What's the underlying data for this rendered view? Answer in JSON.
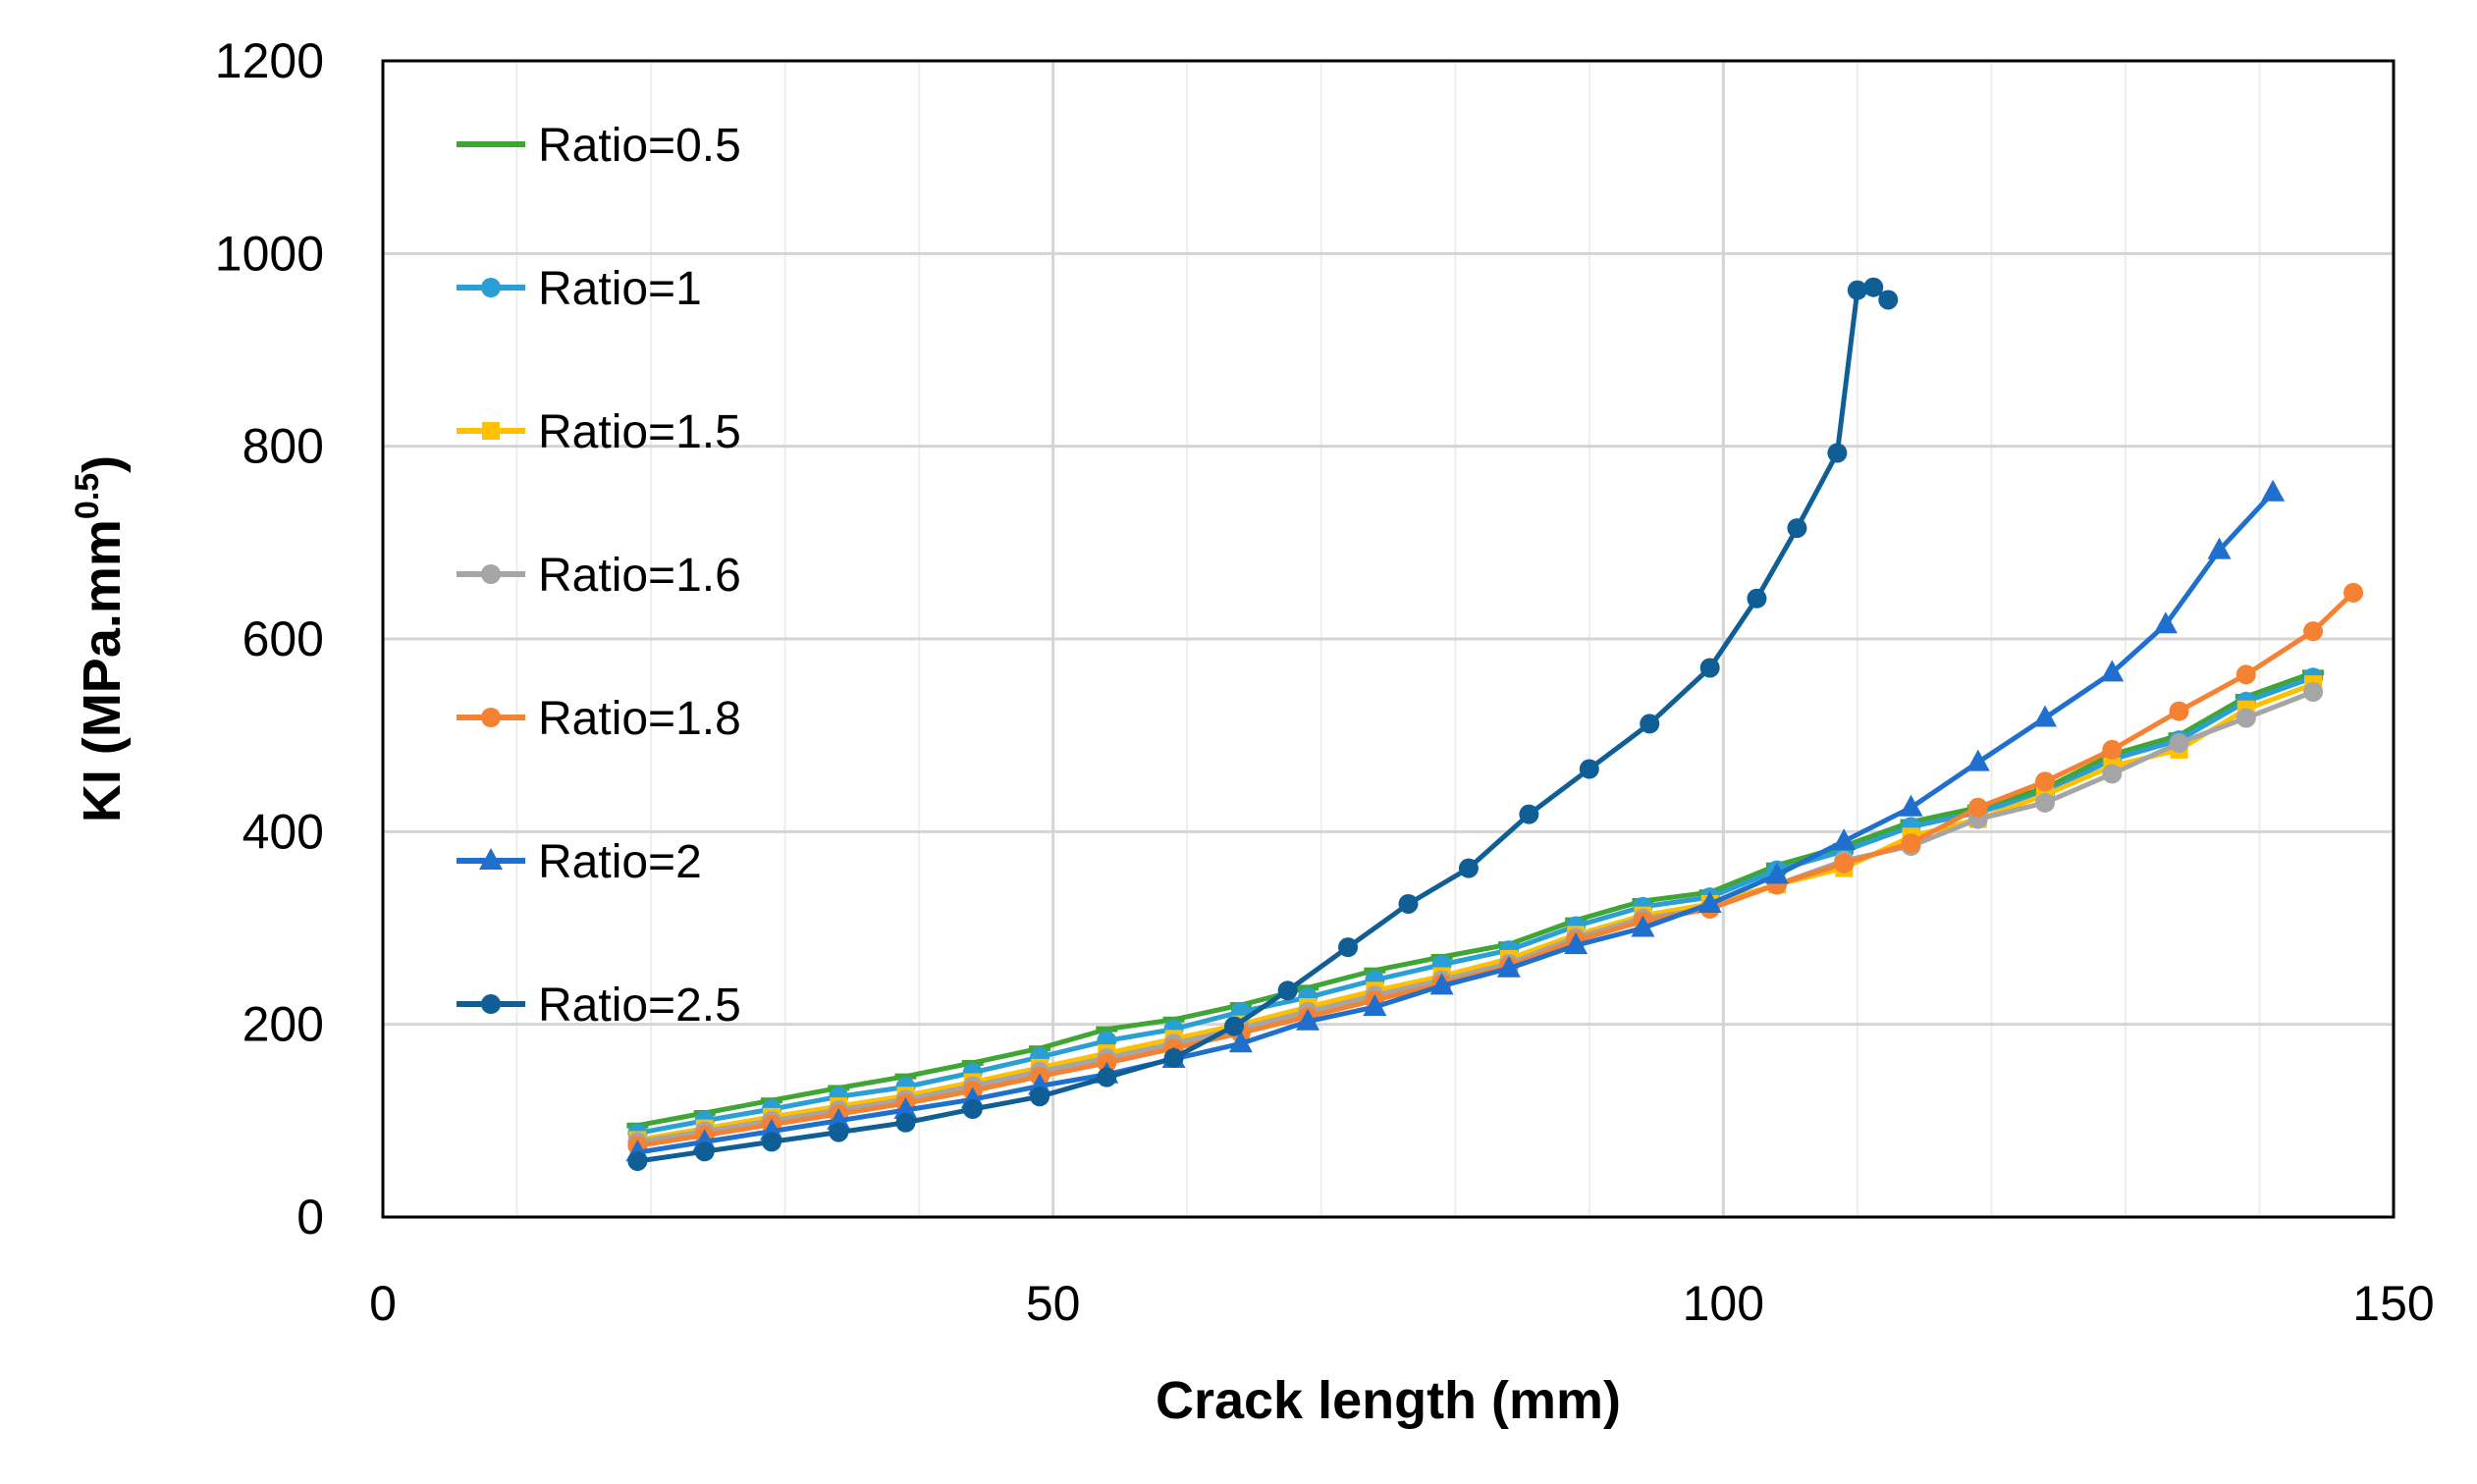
{
  "chart_data": {
    "type": "line",
    "title": "",
    "xlabel": "Crack length (mm)",
    "ylabel_main": "KI (MPa.mm",
    "ylabel_sup": "0.5",
    "ylabel_close": ")",
    "xlim": [
      0,
      150
    ],
    "ylim": [
      0,
      1200
    ],
    "xticks": [
      0,
      50,
      100,
      150
    ],
    "xtick_labels": [
      "0",
      "50",
      "100",
      "150"
    ],
    "yticks": [
      0,
      200,
      400,
      600,
      800,
      1000,
      1200
    ],
    "ytick_labels": [
      "0",
      "200",
      "400",
      "600",
      "800",
      "1000",
      "1200"
    ],
    "grid": true,
    "legend_position": "top-left",
    "series": [
      {
        "name": "Ratio=0.5",
        "color": "#3FA535",
        "marker": "dash",
        "x": [
          19,
          24,
          29,
          34,
          39,
          44,
          49,
          54,
          59,
          64,
          69,
          74,
          79,
          84,
          89,
          94,
          99,
          104,
          109,
          114,
          119,
          124,
          129,
          134,
          139,
          144
        ],
        "y": [
          95,
          108,
          121,
          134,
          146,
          160,
          175,
          195,
          205,
          220,
          238,
          256,
          270,
          283,
          308,
          328,
          337,
          365,
          385,
          410,
          425,
          445,
          480,
          500,
          540,
          565
        ]
      },
      {
        "name": "Ratio=1",
        "color": "#2A9FD6",
        "marker": "circle",
        "x": [
          19,
          24,
          29,
          34,
          39,
          44,
          49,
          54,
          59,
          64,
          69,
          74,
          79,
          84,
          89,
          94,
          99,
          104,
          109,
          114,
          119,
          124,
          129,
          134,
          139,
          144
        ],
        "y": [
          87,
          100,
          112,
          125,
          135,
          150,
          166,
          183,
          195,
          213,
          228,
          246,
          262,
          277,
          302,
          322,
          332,
          360,
          380,
          405,
          420,
          440,
          475,
          495,
          535,
          560
        ]
      },
      {
        "name": "Ratio=1.5",
        "color": "#FFC000",
        "marker": "square",
        "x": [
          19,
          24,
          29,
          34,
          39,
          44,
          49,
          54,
          59,
          64,
          69,
          74,
          79,
          84,
          89,
          94,
          99,
          104,
          109,
          114,
          119,
          124,
          129,
          134,
          139,
          144
        ],
        "y": [
          80,
          92,
          104,
          115,
          126,
          140,
          155,
          170,
          185,
          200,
          218,
          235,
          250,
          268,
          293,
          313,
          325,
          345,
          362,
          395,
          413,
          438,
          468,
          485,
          527,
          553
        ]
      },
      {
        "name": "Ratio=1.6",
        "color": "#A5A5A5",
        "marker": "circle",
        "x": [
          19,
          24,
          29,
          34,
          39,
          44,
          49,
          54,
          59,
          64,
          69,
          74,
          79,
          84,
          89,
          94,
          99,
          104,
          109,
          114,
          119,
          124,
          129,
          134,
          139,
          144
        ],
        "y": [
          78,
          89,
          100,
          111,
          122,
          136,
          151,
          165,
          180,
          196,
          213,
          230,
          246,
          263,
          290,
          310,
          320,
          345,
          370,
          385,
          413,
          430,
          460,
          492,
          518,
          545
        ]
      },
      {
        "name": "Ratio=1.8",
        "color": "#F58233",
        "marker": "circle",
        "x": [
          19,
          24,
          29,
          34,
          39,
          44,
          49,
          54,
          59,
          64,
          69,
          74,
          79,
          84,
          89,
          94,
          99,
          104,
          109,
          114,
          119,
          124,
          129,
          134,
          139,
          144,
          147
        ],
        "y": [
          74,
          85,
          96,
          107,
          118,
          131,
          146,
          160,
          175,
          191,
          208,
          225,
          242,
          260,
          287,
          307,
          320,
          345,
          367,
          388,
          425,
          452,
          485,
          525,
          563,
          608,
          648
        ]
      },
      {
        "name": "Ratio=2",
        "color": "#1F6FCF",
        "marker": "triangle",
        "x": [
          19,
          24,
          29,
          34,
          39,
          44,
          49,
          54,
          59,
          64,
          69,
          74,
          79,
          84,
          89,
          94,
          99,
          104,
          109,
          114,
          119,
          124,
          129,
          133,
          137,
          141
        ],
        "y": [
          67,
          78,
          89,
          100,
          111,
          122,
          136,
          148,
          164,
          180,
          203,
          218,
          240,
          258,
          282,
          300,
          325,
          355,
          390,
          425,
          472,
          518,
          565,
          615,
          692,
          752
        ]
      },
      {
        "name": "Ratio=2.5",
        "color": "#0F5E96",
        "marker": "circle",
        "x": [
          19,
          24,
          29,
          34,
          39,
          44,
          49,
          54,
          59,
          63.5,
          67.5,
          72,
          76.5,
          81,
          85.5,
          90,
          94.5,
          99,
          102.5,
          105.5,
          108.5,
          110,
          111.2,
          112.3
        ],
        "y": [
          58,
          68,
          78,
          88,
          98,
          112,
          125,
          145,
          165,
          198,
          235,
          280,
          325,
          362,
          418,
          465,
          512,
          570,
          642,
          715,
          793,
          962,
          965,
          952
        ]
      }
    ]
  }
}
